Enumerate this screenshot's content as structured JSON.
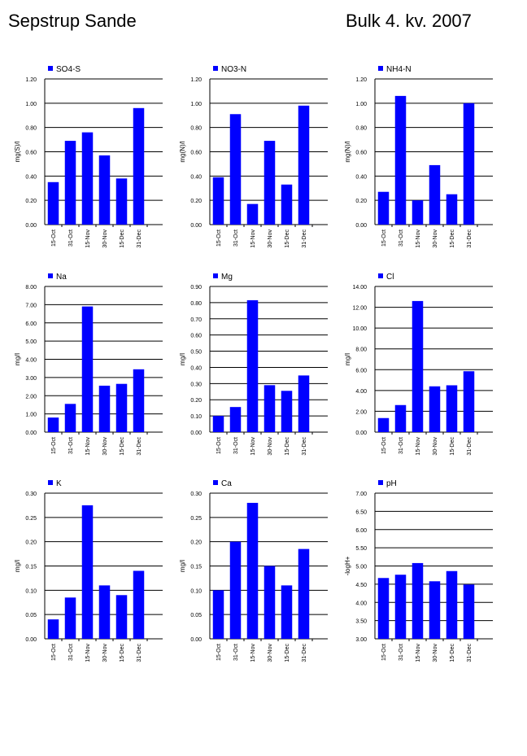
{
  "page": {
    "title_left": "Sepstrup Sande",
    "title_right": "Bulk  4. kv. 2007"
  },
  "colors": {
    "bar": "#0000ff",
    "grid": "#000000",
    "background": "#ffffff"
  },
  "chart_data": [
    {
      "type": "bar",
      "series_name": "SO4-S",
      "ylabel": "mg(S)/l",
      "categories": [
        "15-Oct",
        "31-Oct",
        "15-Nov",
        "30-Nov",
        "15-Dec",
        "31-Dec"
      ],
      "values": [
        0.35,
        0.69,
        0.76,
        0.57,
        0.38,
        0.96
      ],
      "ylim": [
        0,
        1.2
      ],
      "yticks": [
        "0.00",
        "0.20",
        "0.40",
        "0.60",
        "0.80",
        "1.00",
        "1.20"
      ],
      "legend": "top-left",
      "grid": true
    },
    {
      "type": "bar",
      "series_name": "NO3-N",
      "ylabel": "mg(N)/l",
      "categories": [
        "15-Oct",
        "31-Oct",
        "15-Nov",
        "30-Nov",
        "15-Dec",
        "31-Dec"
      ],
      "values": [
        0.39,
        0.91,
        0.17,
        0.69,
        0.33,
        0.98
      ],
      "ylim": [
        0,
        1.2
      ],
      "yticks": [
        "0.00",
        "0.20",
        "0.40",
        "0.60",
        "0.80",
        "1.00",
        "1.20"
      ],
      "legend": "top-left",
      "grid": true
    },
    {
      "type": "bar",
      "series_name": "NH4-N",
      "ylabel": "mg(N)/l",
      "categories": [
        "15-Oct",
        "31-Oct",
        "15-Nov",
        "30-Nov",
        "15-Dec",
        "31-Dec"
      ],
      "values": [
        0.27,
        1.06,
        0.2,
        0.49,
        0.25,
        1.0
      ],
      "ylim": [
        0,
        1.2
      ],
      "yticks": [
        "0.00",
        "0.20",
        "0.40",
        "0.60",
        "0.80",
        "1.00",
        "1.20"
      ],
      "legend": "top-left",
      "grid": true
    },
    {
      "type": "bar",
      "series_name": "Na",
      "ylabel": "mg/l",
      "categories": [
        "15-Oct",
        "31-Oct",
        "15-Nov",
        "30-Nov",
        "15-Dec",
        "31-Dec"
      ],
      "values": [
        0.8,
        1.55,
        6.9,
        2.55,
        2.65,
        3.45
      ],
      "ylim": [
        0,
        8
      ],
      "yticks": [
        "0.00",
        "1.00",
        "2.00",
        "3.00",
        "4.00",
        "5.00",
        "6.00",
        "7.00",
        "8.00"
      ],
      "legend": "top-left",
      "grid": true
    },
    {
      "type": "bar",
      "series_name": "Mg",
      "ylabel": "mg/l",
      "categories": [
        "15-Oct",
        "31-Oct",
        "15-Nov",
        "30-Nov",
        "15-Dec",
        "31-Dec"
      ],
      "values": [
        0.1,
        0.155,
        0.815,
        0.29,
        0.255,
        0.35
      ],
      "ylim": [
        0,
        0.9
      ],
      "yticks": [
        "0.00",
        "0.10",
        "0.20",
        "0.30",
        "0.40",
        "0.50",
        "0.60",
        "0.70",
        "0.80",
        "0.90"
      ],
      "legend": "top-left",
      "grid": true
    },
    {
      "type": "bar",
      "series_name": "Cl",
      "ylabel": "mg/l",
      "categories": [
        "15-Oct",
        "31-Oct",
        "15-Nov",
        "30-Nov",
        "15-Dec",
        "31-Dec"
      ],
      "values": [
        1.35,
        2.6,
        12.6,
        4.4,
        4.5,
        5.85
      ],
      "ylim": [
        0,
        14
      ],
      "yticks": [
        "0.00",
        "2.00",
        "4.00",
        "6.00",
        "8.00",
        "10.00",
        "12.00",
        "14.00"
      ],
      "legend": "top-left",
      "grid": true
    },
    {
      "type": "bar",
      "series_name": "K",
      "ylabel": "mg/l",
      "categories": [
        "15-Oct",
        "31-Oct",
        "15-Nov",
        "30-Nov",
        "15-Dec",
        "31-Dec"
      ],
      "values": [
        0.04,
        0.085,
        0.275,
        0.11,
        0.09,
        0.14
      ],
      "ylim": [
        0,
        0.3
      ],
      "yticks": [
        "0.00",
        "0.05",
        "0.10",
        "0.15",
        "0.20",
        "0.25",
        "0.30"
      ],
      "legend": "top-left",
      "grid": true
    },
    {
      "type": "bar",
      "series_name": "Ca",
      "ylabel": "mg/l",
      "categories": [
        "15-Oct",
        "31-Oct",
        "15-Nov",
        "30-Nov",
        "15-Dec",
        "31-Dec"
      ],
      "values": [
        0.1,
        0.2,
        0.28,
        0.15,
        0.11,
        0.185
      ],
      "ylim": [
        0,
        0.3
      ],
      "yticks": [
        "0.00",
        "0.05",
        "0.10",
        "0.15",
        "0.20",
        "0.25",
        "0.30"
      ],
      "legend": "top-left",
      "grid": true
    },
    {
      "type": "bar",
      "series_name": "pH",
      "ylabel": "-logH+",
      "categories": [
        "15-Oct",
        "31-Oct",
        "15-Nov",
        "30-Nov",
        "15-Dec",
        "31-Dec"
      ],
      "values": [
        4.67,
        4.76,
        5.08,
        4.58,
        4.86,
        4.49
      ],
      "ylim": [
        3,
        7
      ],
      "yticks": [
        "3.00",
        "3.50",
        "4.00",
        "4.50",
        "5.00",
        "5.50",
        "6.00",
        "6.50",
        "7.00"
      ],
      "legend": "top-left",
      "grid": true
    }
  ]
}
